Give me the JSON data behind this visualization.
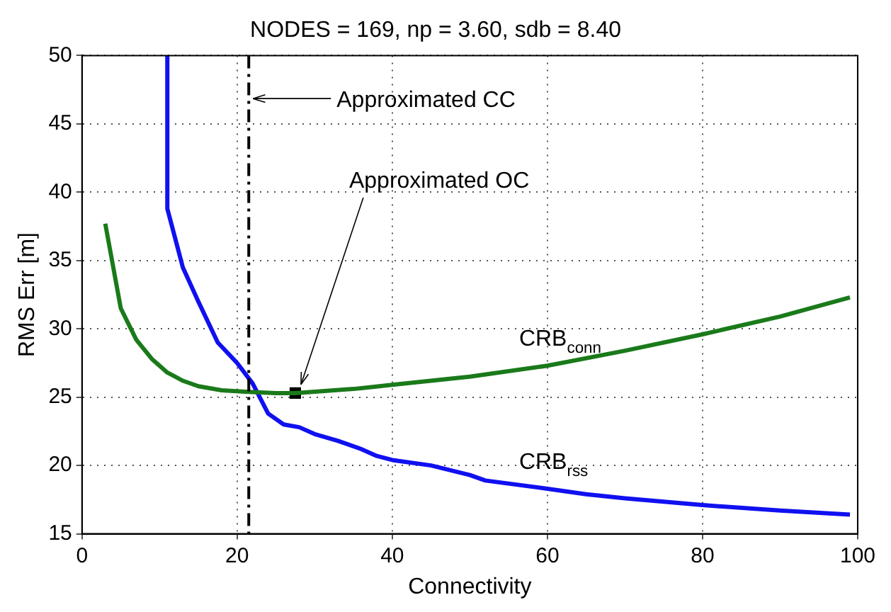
{
  "chart_data": {
    "type": "line",
    "title": "NODES = 169, np = 3.60, sdb = 8.40",
    "xlabel": "Connectivity",
    "ylabel": "RMS Err [m]",
    "xlim": [
      0,
      100
    ],
    "xticks": [
      0,
      20,
      40,
      60,
      80,
      100
    ],
    "ylim": [
      15,
      50
    ],
    "yticks": [
      15,
      20,
      25,
      30,
      35,
      40,
      45,
      50
    ],
    "grid": true,
    "legend": false,
    "marker": "none",
    "line_style": "solid",
    "series": [
      {
        "name": "CRB$_{conn}$",
        "color": "#1a7a1a",
        "x": [
          3,
          5,
          7,
          9,
          11,
          13,
          15,
          18,
          21,
          25,
          27.5,
          30,
          35,
          40,
          50,
          60,
          70,
          80,
          90,
          99
        ],
        "values": [
          37.7,
          31.5,
          29.2,
          27.8,
          26.8,
          26.2,
          25.8,
          25.5,
          25.4,
          25.3,
          25.3,
          25.4,
          25.6,
          25.9,
          26.5,
          27.3,
          28.4,
          29.6,
          30.9,
          32.3
        ]
      },
      {
        "name": "CRB$_{rss}$",
        "color": "#1010f0",
        "x": [
          11,
          11,
          13,
          15,
          17.5,
          20,
          22,
          24,
          26,
          28,
          30,
          33,
          36,
          38,
          40,
          45,
          50,
          52,
          60,
          65,
          70,
          80,
          90,
          99
        ],
        "values": [
          50,
          38.8,
          34.5,
          32,
          29,
          27.5,
          26,
          23.8,
          23,
          22.8,
          22.3,
          21.8,
          21.2,
          20.7,
          20.4,
          20,
          19.3,
          18.9,
          18.3,
          17.9,
          17.6,
          17.1,
          16.7,
          16.4
        ]
      },
      {
        "type": "scatter",
        "marker": "square",
        "color": "#000000",
        "x": [
          27.5
        ],
        "values": [
          25.3
        ]
      }
    ],
    "ref_lines": [
      {
        "axis": "x",
        "value": 21.5,
        "label": "Approximated CC",
        "color": "#000000",
        "line_style": "dashed"
      }
    ],
    "annotations": [
      {
        "text": "Approximated OC",
        "x": 27.5,
        "y": 25.3
      }
    ]
  }
}
